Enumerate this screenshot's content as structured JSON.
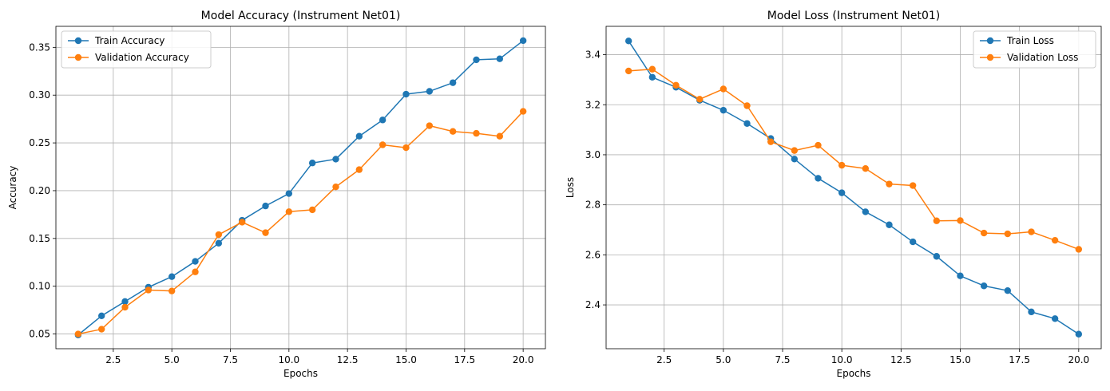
{
  "chart_data": [
    {
      "type": "line",
      "title": "Model Accuracy (Instrument Net01)",
      "xlabel": "Epochs",
      "ylabel": "Accuracy",
      "xlim": [
        0.05,
        20.95
      ],
      "ylim": [
        0.0346,
        0.372
      ],
      "xticks": [
        2.5,
        5.0,
        7.5,
        10.0,
        12.5,
        15.0,
        17.5,
        20.0
      ],
      "xtick_labels": [
        "2.5",
        "5.0",
        "7.5",
        "10.0",
        "12.5",
        "15.0",
        "17.5",
        "20.0"
      ],
      "yticks": [
        0.05,
        0.1,
        0.15,
        0.2,
        0.25,
        0.3,
        0.35
      ],
      "ytick_labels": [
        "0.05",
        "0.10",
        "0.15",
        "0.20",
        "0.25",
        "0.30",
        "0.35"
      ],
      "grid": true,
      "legend": "upper-left",
      "x": [
        1,
        2,
        3,
        4,
        5,
        6,
        7,
        8,
        9,
        10,
        11,
        12,
        13,
        14,
        15,
        16,
        17,
        18,
        19,
        20
      ],
      "series": [
        {
          "name": "Train Accuracy",
          "color": "#1f77b4",
          "values": [
            0.049,
            0.069,
            0.084,
            0.099,
            0.11,
            0.126,
            0.145,
            0.169,
            0.184,
            0.197,
            0.229,
            0.233,
            0.257,
            0.274,
            0.301,
            0.304,
            0.313,
            0.337,
            0.338,
            0.357
          ]
        },
        {
          "name": "Validation Accuracy",
          "color": "#ff7f0e",
          "values": [
            0.05,
            0.055,
            0.078,
            0.096,
            0.095,
            0.115,
            0.154,
            0.167,
            0.156,
            0.178,
            0.18,
            0.204,
            0.222,
            0.248,
            0.245,
            0.268,
            0.262,
            0.26,
            0.257,
            0.283
          ]
        }
      ]
    },
    {
      "type": "line",
      "title": "Model Loss (Instrument Net01)",
      "xlabel": "Epochs",
      "ylabel": "Loss",
      "xlim": [
        0.05,
        20.95
      ],
      "ylim": [
        2.2248,
        3.5134
      ],
      "xticks": [
        2.5,
        5.0,
        7.5,
        10.0,
        12.5,
        15.0,
        17.5,
        20.0
      ],
      "xtick_labels": [
        "2.5",
        "5.0",
        "7.5",
        "10.0",
        "12.5",
        "15.0",
        "17.5",
        "20.0"
      ],
      "yticks": [
        2.4,
        2.6,
        2.8,
        3.0,
        3.2,
        3.4
      ],
      "ytick_labels": [
        "2.4",
        "2.6",
        "2.8",
        "3.0",
        "3.2",
        "3.4"
      ],
      "grid": true,
      "legend": "upper-right",
      "x": [
        1,
        2,
        3,
        4,
        5,
        6,
        7,
        8,
        9,
        10,
        11,
        12,
        13,
        14,
        15,
        16,
        17,
        18,
        19,
        20
      ],
      "series": [
        {
          "name": "Train Loss",
          "color": "#1f77b4",
          "values": [
            3.455,
            3.31,
            3.27,
            3.218,
            3.178,
            3.125,
            3.065,
            2.983,
            2.906,
            2.848,
            2.772,
            2.72,
            2.652,
            2.594,
            2.516,
            2.476,
            2.457,
            2.372,
            2.345,
            2.283
          ]
        },
        {
          "name": "Validation Loss",
          "color": "#ff7f0e",
          "values": [
            3.335,
            3.342,
            3.278,
            3.222,
            3.263,
            3.196,
            3.052,
            3.017,
            3.038,
            2.958,
            2.945,
            2.883,
            2.877,
            2.736,
            2.737,
            2.687,
            2.684,
            2.692,
            2.658,
            2.622
          ]
        }
      ]
    }
  ]
}
